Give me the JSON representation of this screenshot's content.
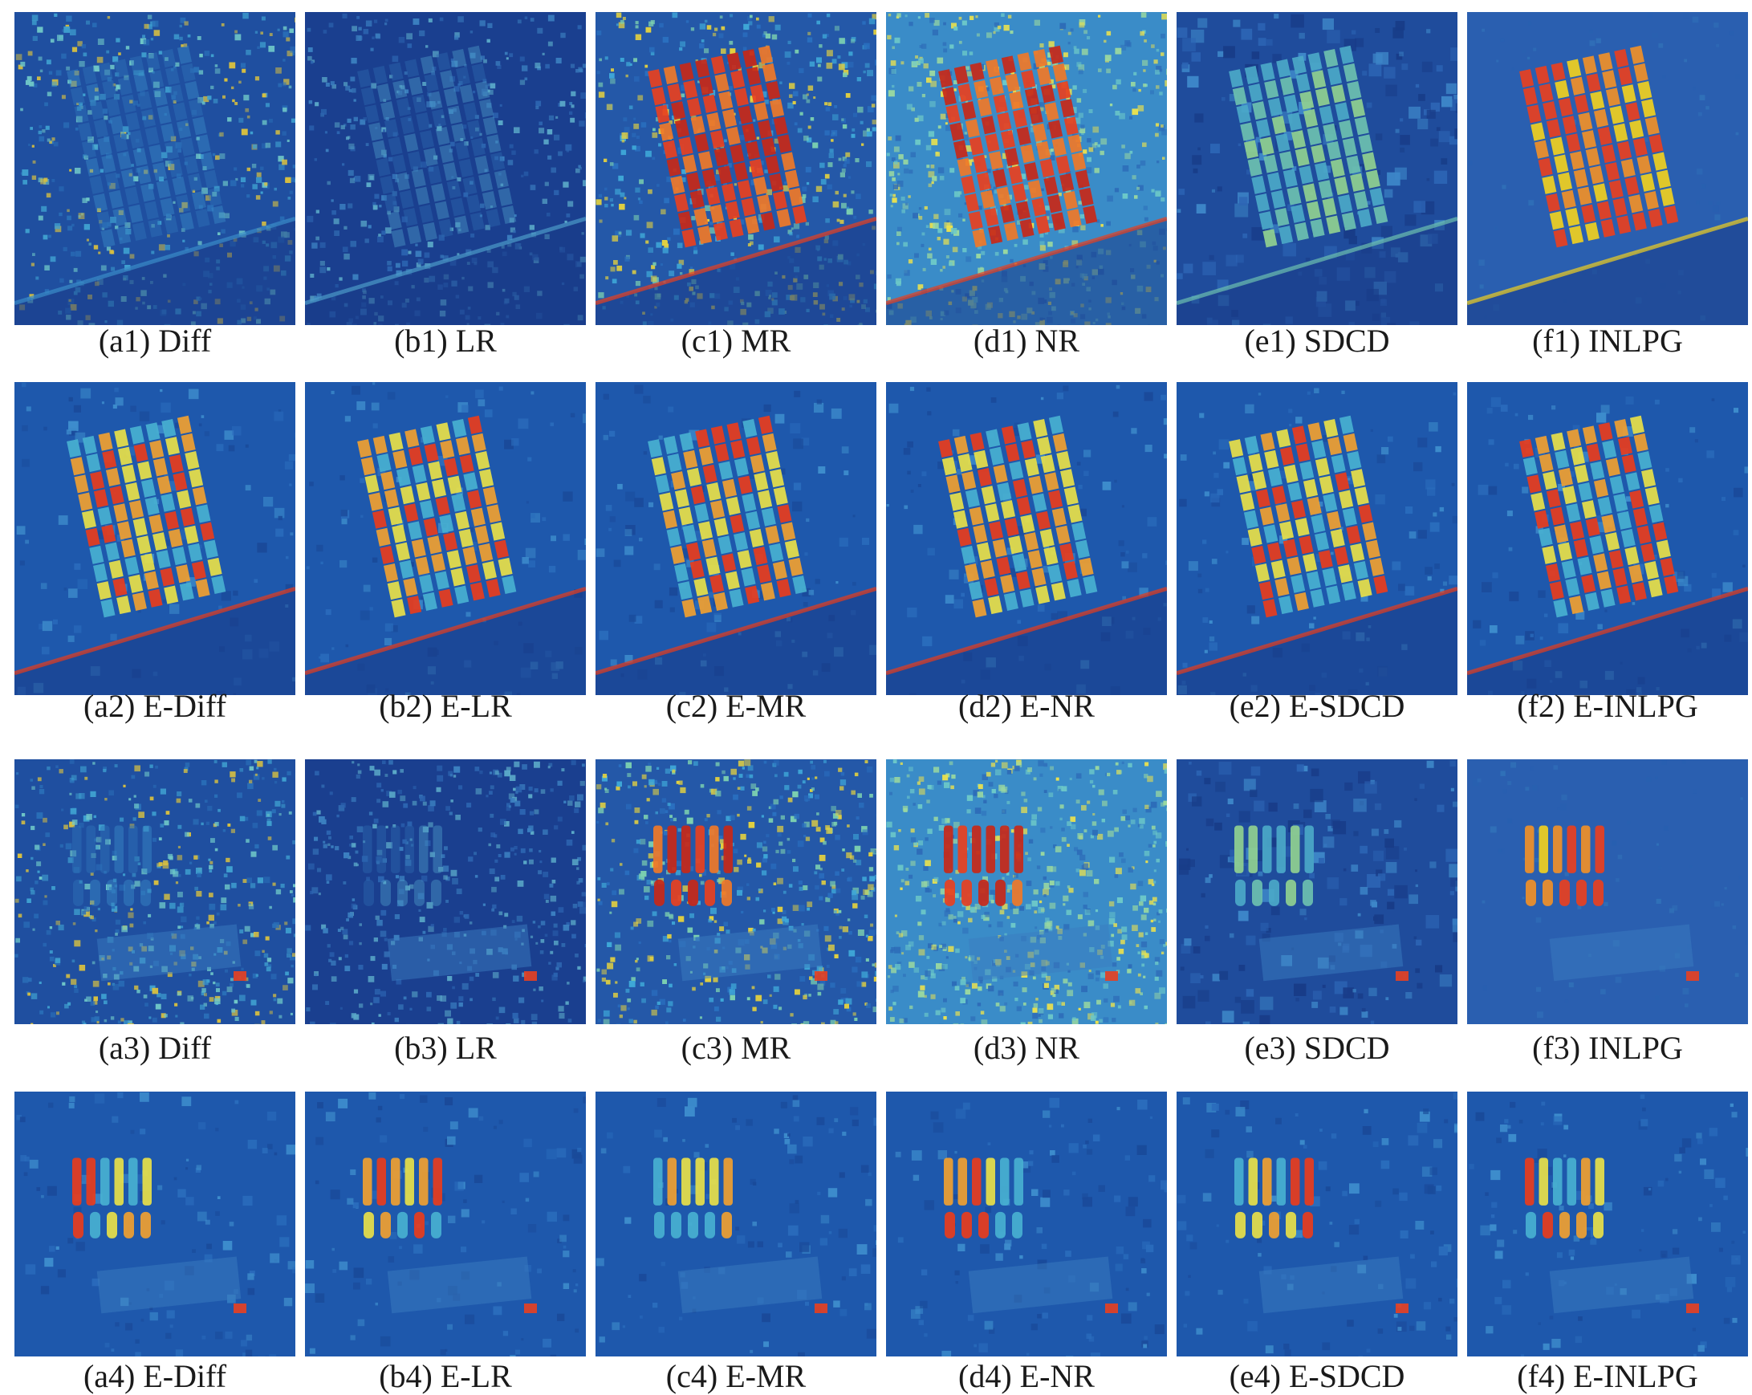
{
  "figure": {
    "rows": [
      {
        "panels": [
          {
            "label": "(a1) Diff",
            "style": "noisy-dim"
          },
          {
            "label": "(b1) LR",
            "style": "noisy-dark"
          },
          {
            "label": "(c1) MR",
            "style": "noisy-hot"
          },
          {
            "label": "(d1) NR",
            "style": "noisy-cyan-hot"
          },
          {
            "label": "(e1) SDCD",
            "style": "blocky"
          },
          {
            "label": "(f1) INLPG",
            "style": "smooth-hot"
          }
        ]
      },
      {
        "panels": [
          {
            "label": "(a2) E-Diff",
            "style": "enhanced"
          },
          {
            "label": "(b2) E-LR",
            "style": "enhanced"
          },
          {
            "label": "(c2) E-MR",
            "style": "enhanced"
          },
          {
            "label": "(d2) E-NR",
            "style": "enhanced"
          },
          {
            "label": "(e2) E-SDCD",
            "style": "enhanced"
          },
          {
            "label": "(f2) E-INLPG",
            "style": "enhanced"
          }
        ]
      },
      {
        "panels": [
          {
            "label": "(a3) Diff",
            "style": "noisy-dim"
          },
          {
            "label": "(b3) LR",
            "style": "noisy-dark"
          },
          {
            "label": "(c3) MR",
            "style": "noisy-hot"
          },
          {
            "label": "(d3) NR",
            "style": "noisy-cyan-hot"
          },
          {
            "label": "(e3) SDCD",
            "style": "blocky"
          },
          {
            "label": "(f3) INLPG",
            "style": "smooth-hot"
          }
        ]
      },
      {
        "panels": [
          {
            "label": "(a4) E-Diff",
            "style": "enhanced"
          },
          {
            "label": "(b4) E-LR",
            "style": "enhanced"
          },
          {
            "label": "(c4) E-MR",
            "style": "enhanced"
          },
          {
            "label": "(d4) E-NR",
            "style": "enhanced"
          },
          {
            "label": "(e4) E-SDCD",
            "style": "enhanced"
          },
          {
            "label": "(f4) E-INLPG",
            "style": "enhanced"
          }
        ]
      }
    ]
  }
}
